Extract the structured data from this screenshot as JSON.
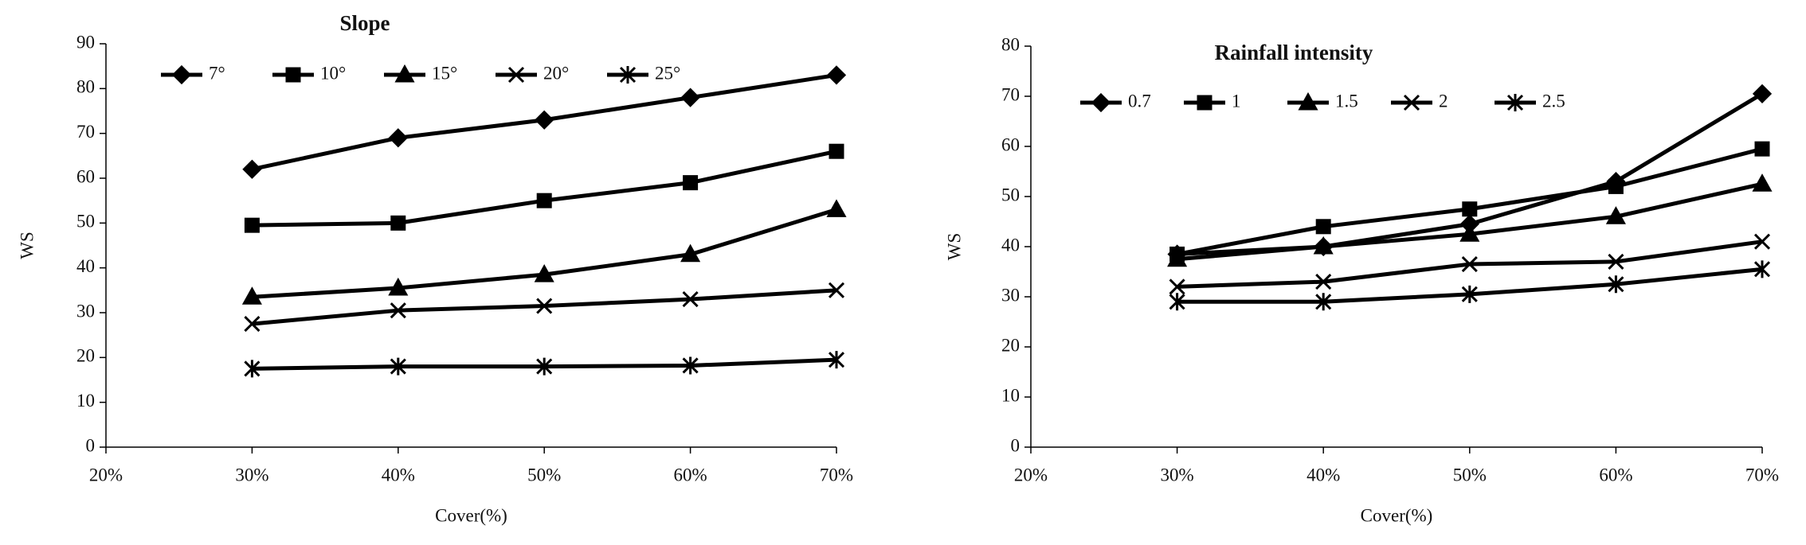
{
  "chart_data": [
    {
      "type": "line",
      "title": "Slope",
      "x_label": "Cover(%)",
      "y_label": "WS",
      "x": [
        30,
        40,
        50,
        60,
        70
      ],
      "xlim": [
        20,
        70
      ],
      "xticks": [
        {
          "value": 20,
          "label": "20%"
        },
        {
          "value": 30,
          "label": "30%"
        },
        {
          "value": 40,
          "label": "40%"
        },
        {
          "value": 50,
          "label": "50%"
        },
        {
          "value": 60,
          "label": "60%"
        },
        {
          "value": 70,
          "label": "70%"
        }
      ],
      "ylim": [
        0,
        90
      ],
      "yticks": [
        0,
        10,
        20,
        30,
        40,
        50,
        60,
        70,
        80,
        90
      ],
      "series": [
        {
          "name": "7°",
          "color": "#000000",
          "marker": "diamond",
          "values": [
            62,
            69,
            73,
            78,
            83
          ]
        },
        {
          "name": "10°",
          "color": "#000000",
          "marker": "square",
          "values": [
            49.5,
            50,
            55,
            59,
            66
          ]
        },
        {
          "name": "15°",
          "color": "#000000",
          "marker": "triangle",
          "values": [
            33.5,
            35.5,
            38.5,
            43,
            53
          ]
        },
        {
          "name": "20°",
          "color": "#000000",
          "marker": "x",
          "values": [
            27.5,
            30.5,
            31.5,
            33,
            35
          ]
        },
        {
          "name": "25°",
          "color": "#000000",
          "marker": "star",
          "values": [
            17.5,
            18,
            18,
            18.2,
            19.5
          ]
        }
      ]
    },
    {
      "type": "line",
      "title": "Rainfall intensity",
      "x_label": "Cover(%)",
      "y_label": "WS",
      "x": [
        30,
        40,
        50,
        60,
        70
      ],
      "xlim": [
        20,
        70
      ],
      "xticks": [
        {
          "value": 20,
          "label": "20%"
        },
        {
          "value": 30,
          "label": "30%"
        },
        {
          "value": 40,
          "label": "40%"
        },
        {
          "value": 50,
          "label": "50%"
        },
        {
          "value": 60,
          "label": "60%"
        },
        {
          "value": 70,
          "label": "70%"
        }
      ],
      "ylim": [
        0,
        80
      ],
      "yticks": [
        0,
        10,
        20,
        30,
        40,
        50,
        60,
        70,
        80
      ],
      "series": [
        {
          "name": "0.7",
          "color": "#000000",
          "marker": "diamond",
          "values": [
            38.5,
            40,
            44.5,
            53,
            70.5
          ]
        },
        {
          "name": "1",
          "color": "#000000",
          "marker": "square",
          "values": [
            38.5,
            44,
            47.5,
            52,
            59.5
          ]
        },
        {
          "name": "1.5",
          "color": "#000000",
          "marker": "triangle",
          "values": [
            37.5,
            40,
            42.5,
            46,
            52.5
          ]
        },
        {
          "name": "2",
          "color": "#000000",
          "marker": "x",
          "values": [
            32,
            33,
            36.5,
            37,
            41
          ]
        },
        {
          "name": "2.5",
          "color": "#000000",
          "marker": "star",
          "values": [
            29,
            29,
            30.5,
            32.5,
            35.5
          ]
        }
      ]
    }
  ]
}
